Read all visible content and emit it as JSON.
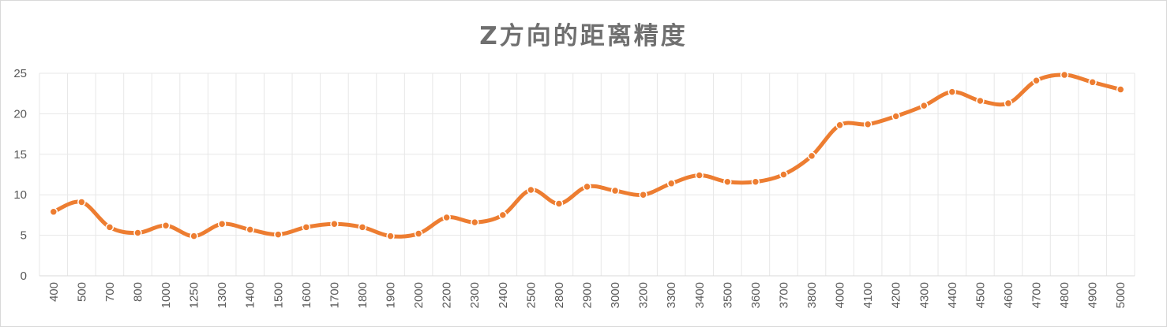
{
  "chart_data": {
    "type": "line",
    "title": "Z方向的距离精度",
    "categories": [
      "400",
      "500",
      "700",
      "800",
      "1000",
      "1250",
      "1300",
      "1400",
      "1500",
      "1600",
      "1700",
      "1800",
      "1900",
      "2000",
      "2200",
      "2300",
      "2400",
      "2500",
      "2800",
      "2900",
      "3000",
      "3200",
      "3300",
      "3400",
      "3500",
      "3600",
      "3700",
      "3800",
      "4000",
      "4100",
      "4200",
      "4300",
      "4400",
      "4500",
      "4600",
      "4700",
      "4800",
      "4900",
      "5000"
    ],
    "series": [
      {
        "values": [
          7.9,
          9.1,
          6.0,
          5.3,
          6.2,
          4.9,
          6.4,
          5.7,
          5.1,
          6.0,
          6.4,
          6.0,
          4.9,
          5.2,
          7.2,
          6.6,
          7.5,
          10.6,
          8.9,
          11.0,
          10.5,
          10.0,
          11.4,
          12.4,
          11.6,
          11.6,
          12.5,
          14.8,
          18.6,
          18.7,
          19.7,
          21.0,
          22.7,
          21.6,
          21.3,
          24.1,
          24.8,
          23.9,
          23.0
        ],
        "color": "#ed7d31"
      }
    ],
    "ylim": [
      0,
      25
    ],
    "yticks": [
      0,
      5,
      10,
      15,
      20,
      25
    ],
    "grid": true,
    "smooth": true,
    "markers": true,
    "legend": "none",
    "colors": {
      "line": "#ed7d31",
      "grid": "#e7e7e7",
      "axis": "#d9d9d9",
      "text": "#595959",
      "title": "#6f6f6f"
    }
  }
}
